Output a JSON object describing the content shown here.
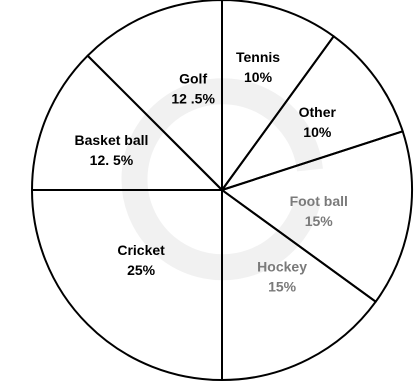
{
  "chart_data": {
    "type": "pie",
    "title": "",
    "legend": "none",
    "slices": [
      {
        "name": "Tennis",
        "label": "Tennis",
        "value_label": "10%",
        "value": 10,
        "text_color": "#000000"
      },
      {
        "name": "Other",
        "label": "Other",
        "value_label": "10%",
        "value": 10,
        "text_color": "#000000"
      },
      {
        "name": "Foot ball",
        "label": "Foot ball",
        "value_label": "15%",
        "value": 15,
        "text_color": "#7a7a7a"
      },
      {
        "name": "Hockey",
        "label": "Hockey",
        "value_label": "15%",
        "value": 15,
        "text_color": "#7a7a7a"
      },
      {
        "name": "Cricket",
        "label": "Cricket",
        "value_label": "25%",
        "value": 25,
        "text_color": "#000000"
      },
      {
        "name": "Basket ball",
        "label": "Basket ball",
        "value_label": "12. 5%",
        "value": 12.5,
        "text_color": "#000000"
      },
      {
        "name": "Golf",
        "label": "Golf",
        "value_label": "12 .5%",
        "value": 12.5,
        "text_color": "#000000"
      }
    ]
  }
}
